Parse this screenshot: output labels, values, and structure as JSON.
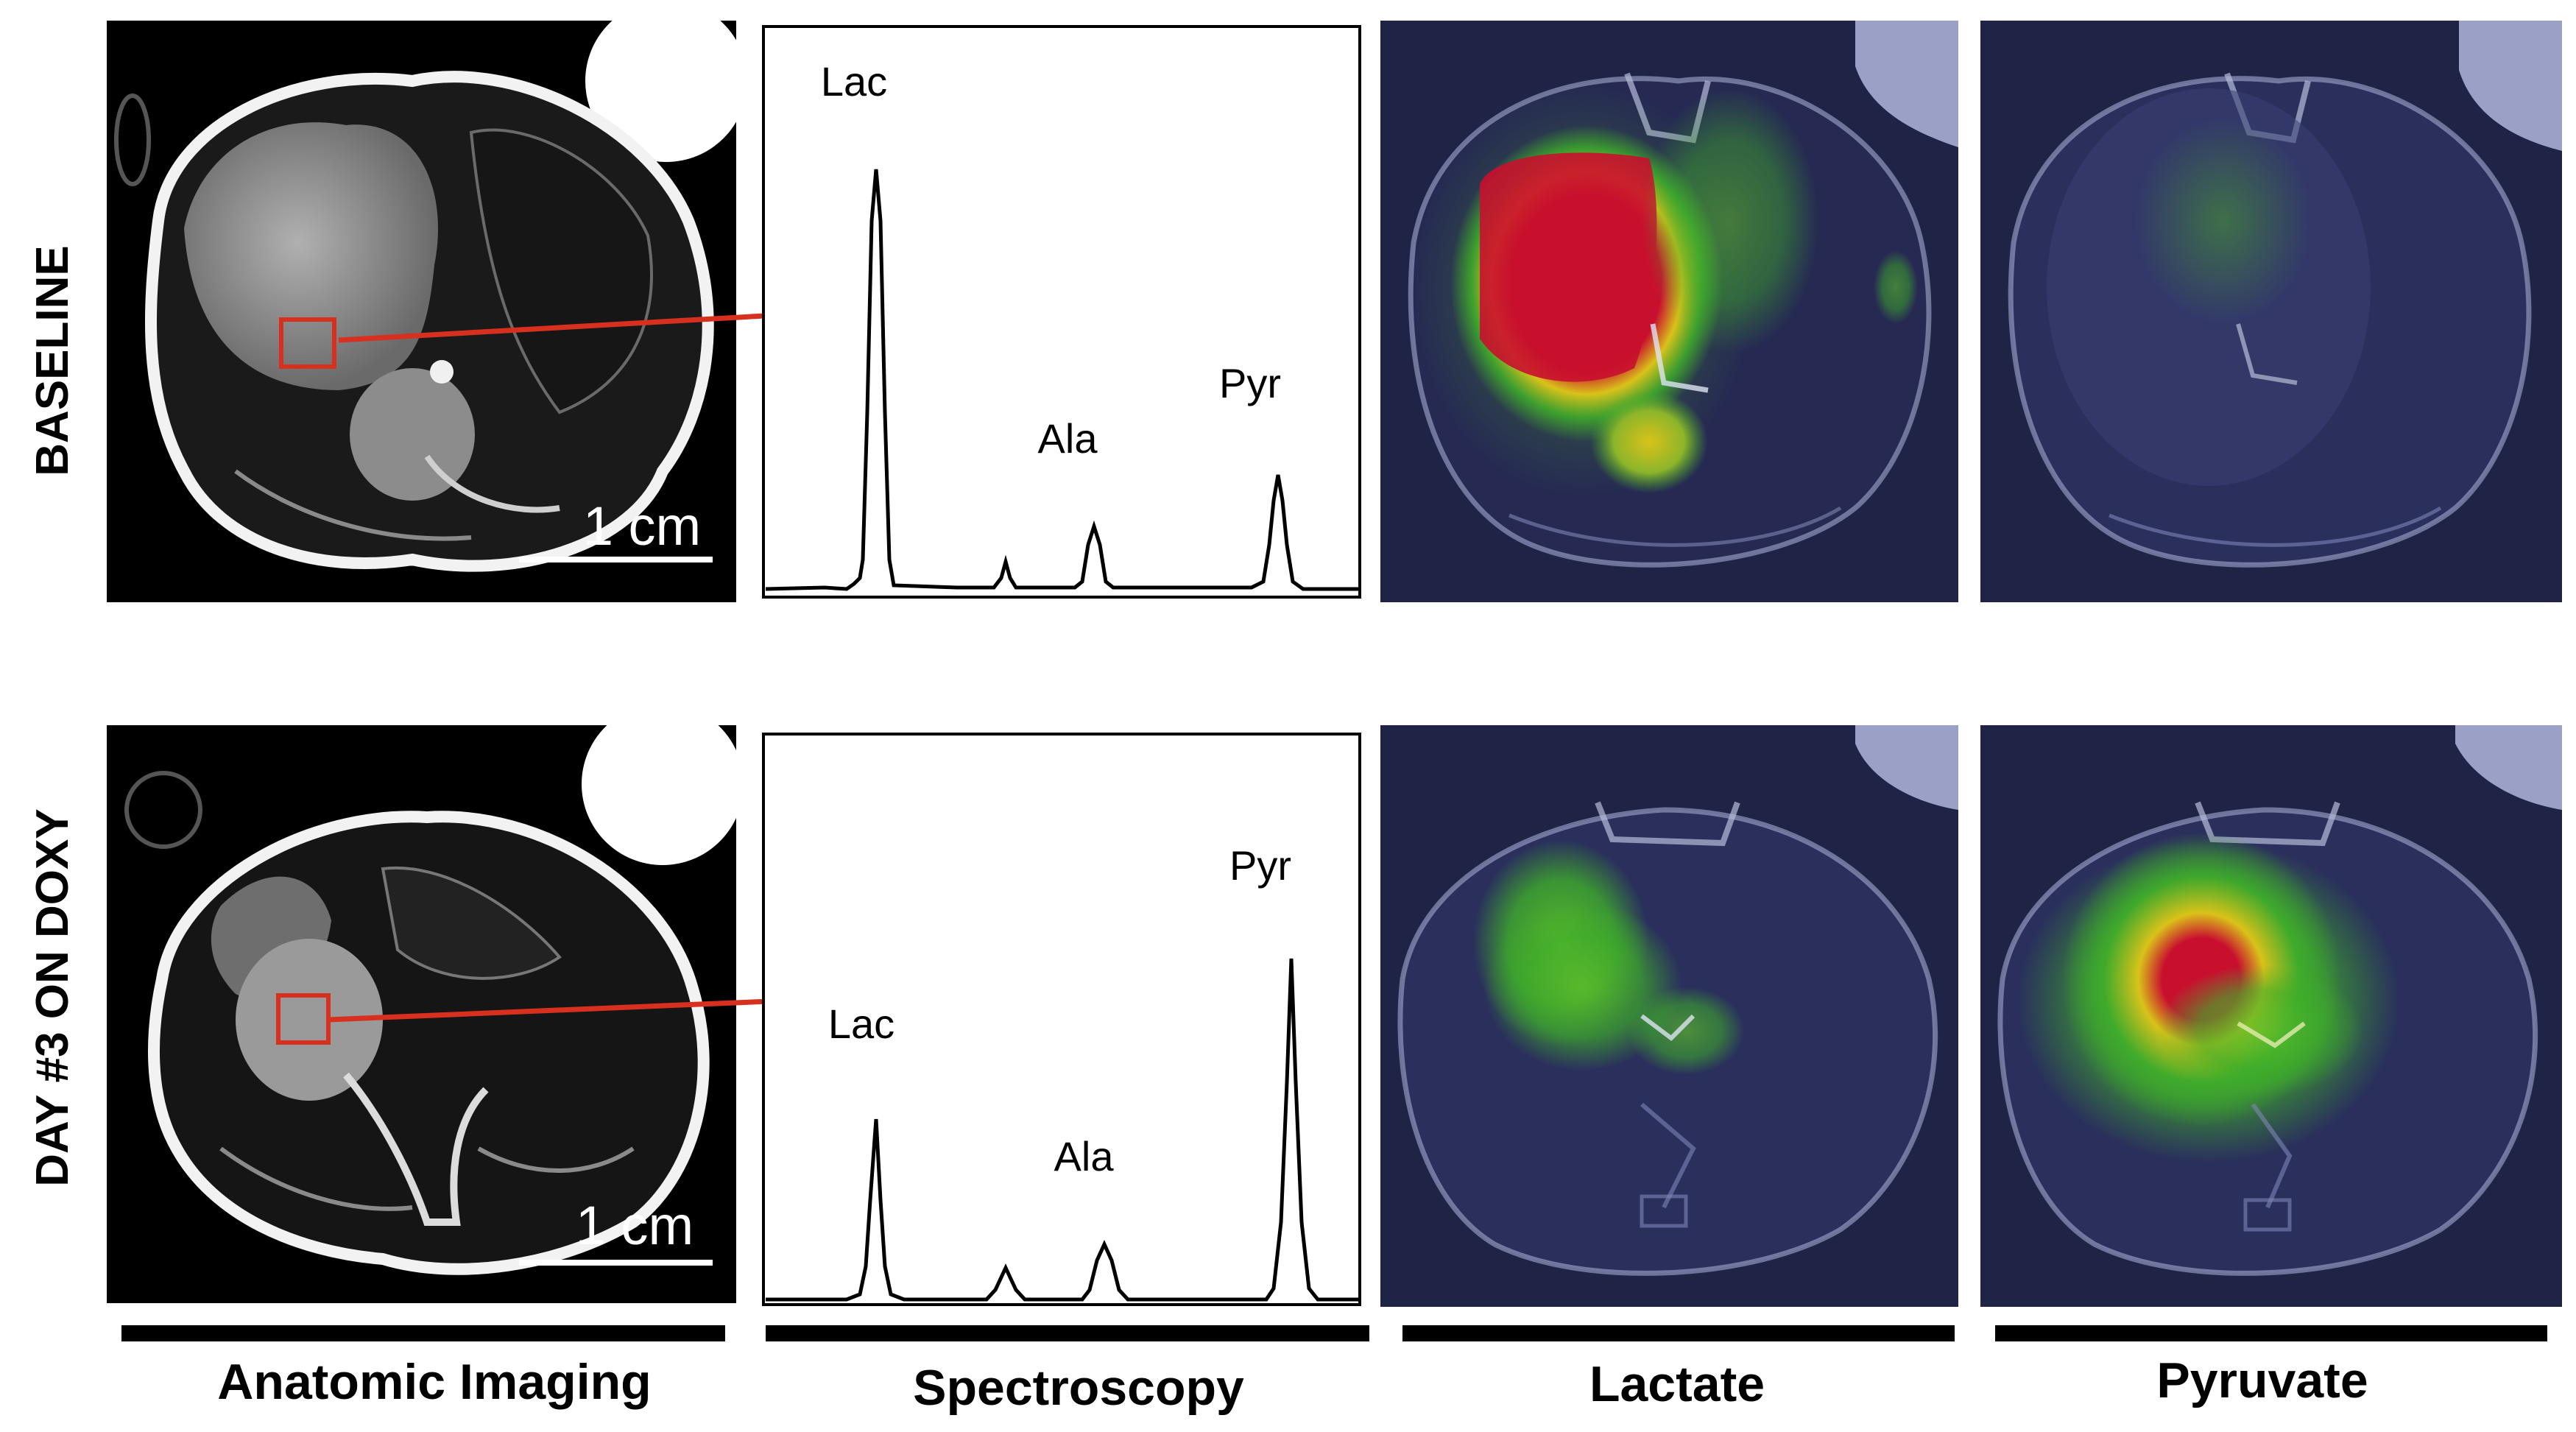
{
  "rows": [
    {
      "label": "BASELINE",
      "scale_bar": "1 cm",
      "peaks": {
        "lac": "Lac",
        "ala": "Ala",
        "pyr": "Pyr"
      },
      "lactate_intensity": "high",
      "pyruvate_intensity": "low"
    },
    {
      "label": "DAY #3 ON DOXY",
      "scale_bar": "1 cm",
      "peaks": {
        "lac": "Lac",
        "ala": "Ala",
        "pyr": "Pyr"
      },
      "lactate_intensity": "medium",
      "pyruvate_intensity": "high"
    }
  ],
  "columns": [
    "Anatomic Imaging",
    "Spectroscopy",
    "Lactate",
    "Pyruvate"
  ],
  "colors": {
    "arrow": "#d8301f",
    "roi_box": "#d8301f",
    "heat_red": "#c8102e",
    "heat_yellow": "#d9c21a",
    "heat_green": "#3fae2a",
    "overlay_bg": "#1f2446"
  }
}
